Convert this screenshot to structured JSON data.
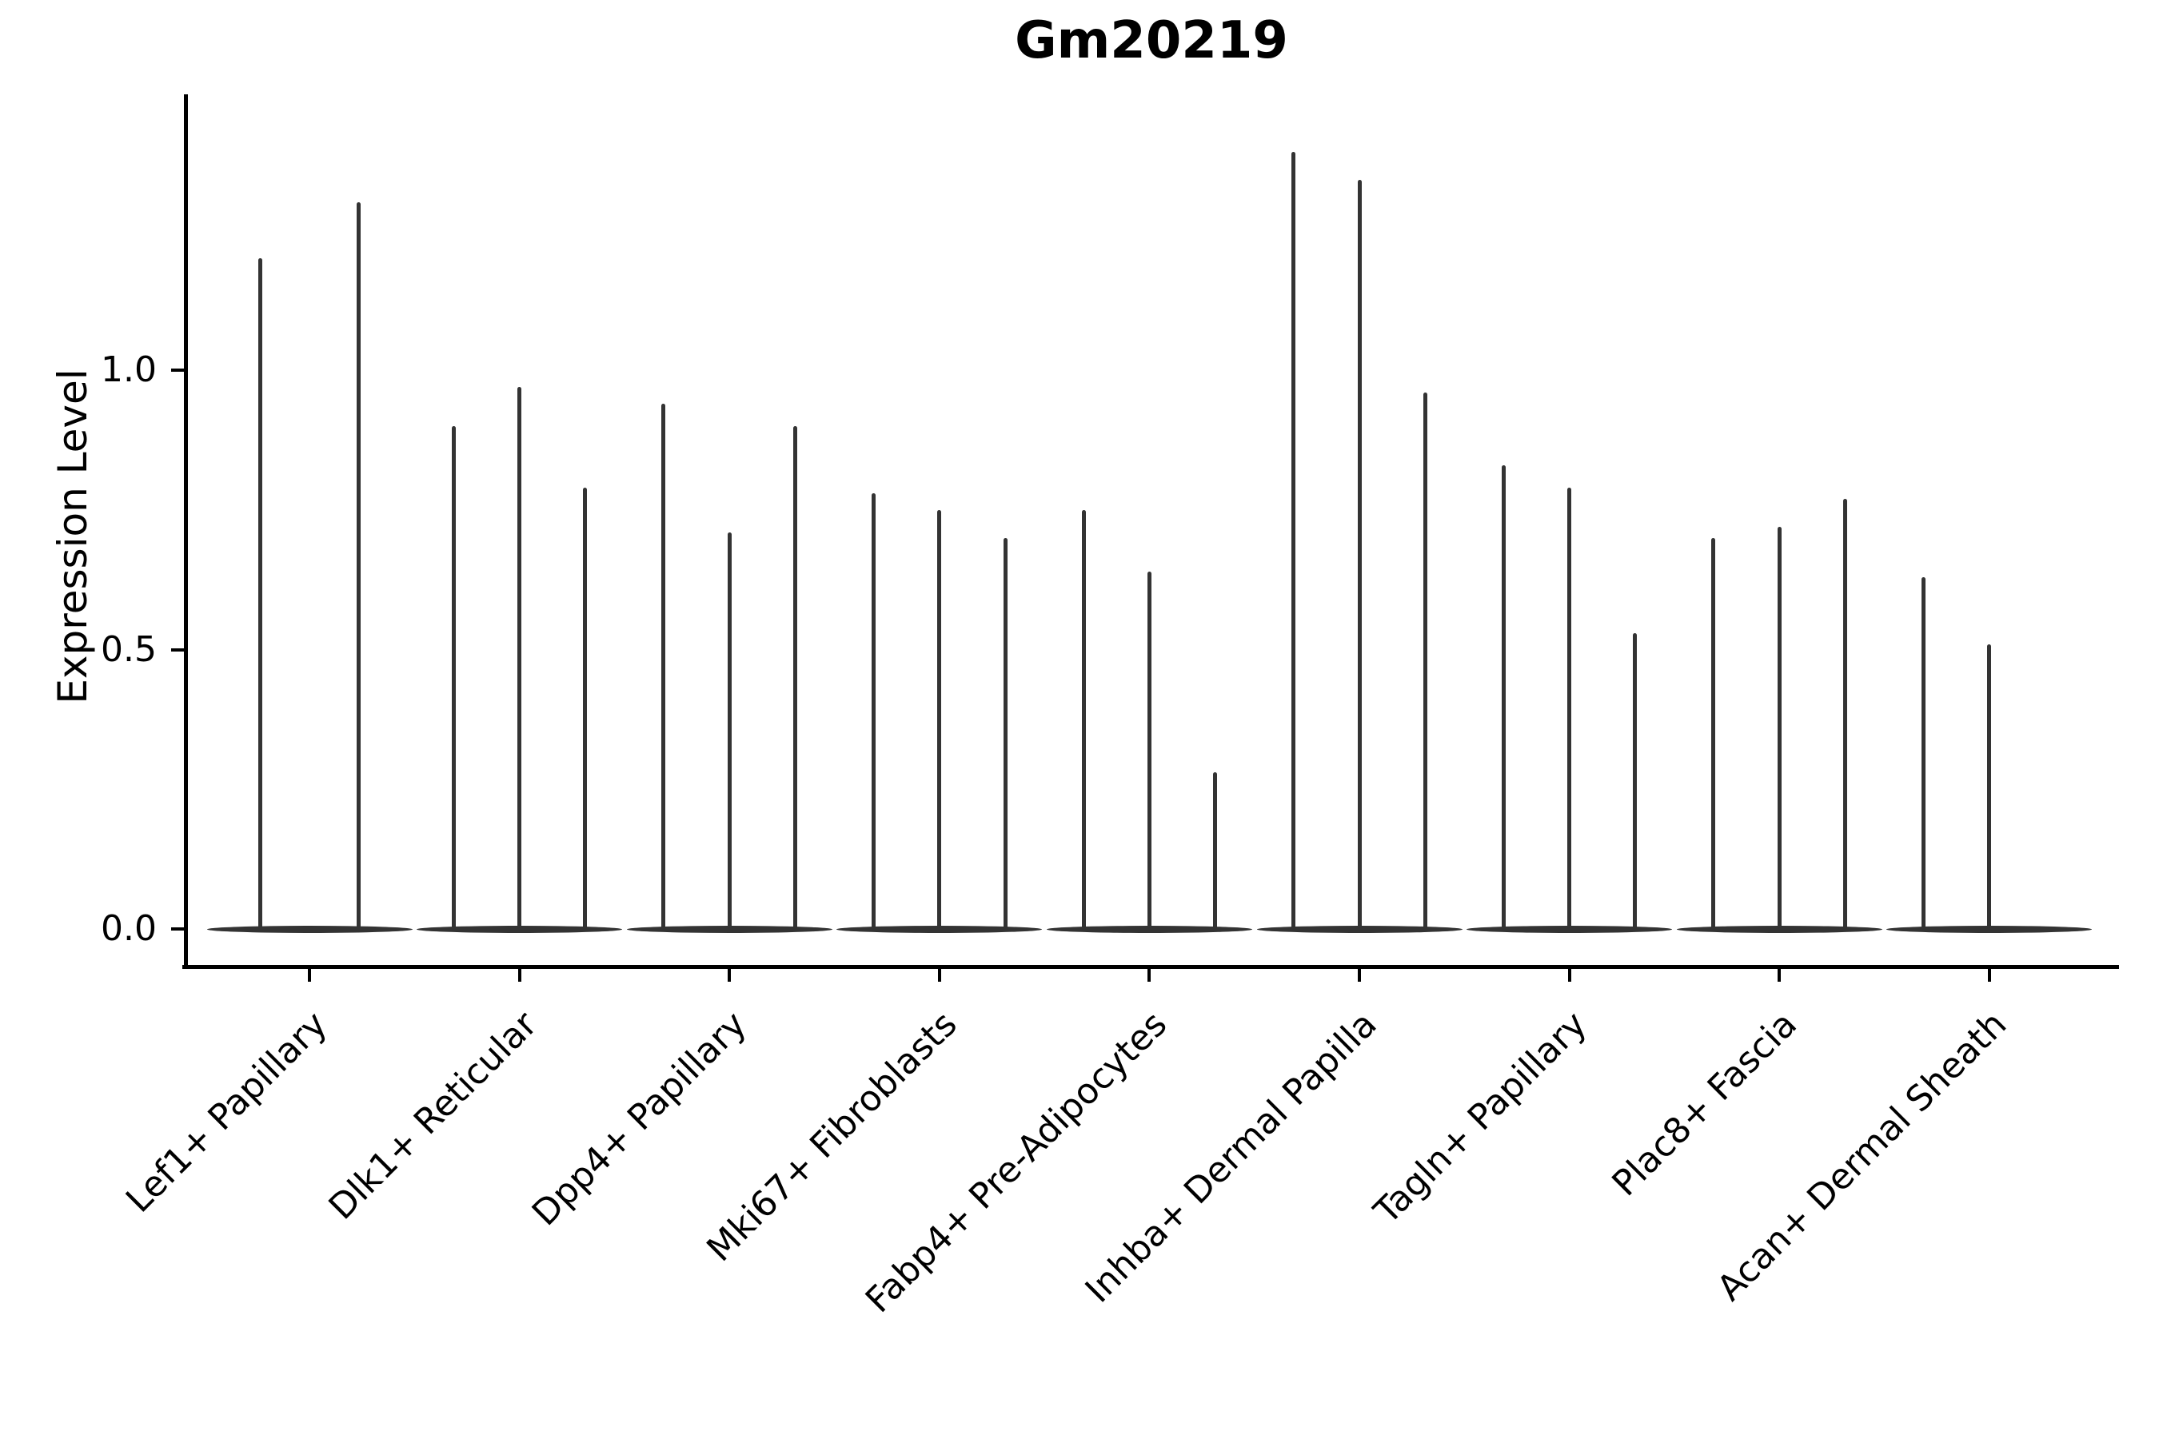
{
  "figure": {
    "title": "Gm20219",
    "background_color": "#ffffff"
  },
  "chart_data": {
    "type": "violin",
    "title": "Gm20219",
    "ylabel": "Expression Level",
    "xlabel": "",
    "ytick_labels": [
      "0.0",
      "0.5",
      "1.0"
    ],
    "ytick_values": [
      0.0,
      0.5,
      1.0
    ],
    "ylim": [
      -0.07,
      1.49
    ],
    "grid": false,
    "legend": "none",
    "x_tick_rotation": 45,
    "categories": [
      "Lef1+ Papillary",
      "Dlk1+ Reticular",
      "Dpp4+ Papillary",
      "Mki67+ Fibroblasts",
      "Fabp4+ Pre-Adipocytes",
      "Inhba+ Dermal Papilla",
      "Tagln+ Papillary",
      "Plac8+ Fascia",
      "Acan+ Dermal Sheath"
    ],
    "groups": [
      {
        "category": "Lef1+ Papillary",
        "violin_maxima": [
          1.2,
          1.3
        ]
      },
      {
        "category": "Dlk1+ Reticular",
        "violin_maxima": [
          0.9,
          0.97,
          0.79
        ]
      },
      {
        "category": "Dpp4+ Papillary",
        "violin_maxima": [
          0.94,
          0.71,
          0.9
        ]
      },
      {
        "category": "Mki67+ Fibroblasts",
        "violin_maxima": [
          0.78,
          0.75,
          0.7
        ]
      },
      {
        "category": "Fabp4+ Pre-Adipocytes",
        "violin_maxima": [
          0.75,
          0.64,
          0.28
        ]
      },
      {
        "category": "Inhba+ Dermal Papilla",
        "violin_maxima": [
          1.39,
          1.34,
          0.96
        ]
      },
      {
        "category": "Tagln+ Papillary",
        "violin_maxima": [
          0.83,
          0.79,
          0.53
        ]
      },
      {
        "category": "Plac8+ Fascia",
        "violin_maxima": [
          0.7,
          0.72,
          0.77
        ]
      },
      {
        "category": "Acan+ Dermal Sheath",
        "violin_maxima": [
          0.63,
          0.51,
          0.0
        ]
      }
    ],
    "description": "Violin bodies are collapsed at expression 0 with thin density spikes rising to each violin's maximum; a maximum of 0.00 is a fully flat violin with no spike.",
    "colors": {
      "violin": "#333333",
      "axis": "#000000",
      "text": "#000000"
    }
  }
}
